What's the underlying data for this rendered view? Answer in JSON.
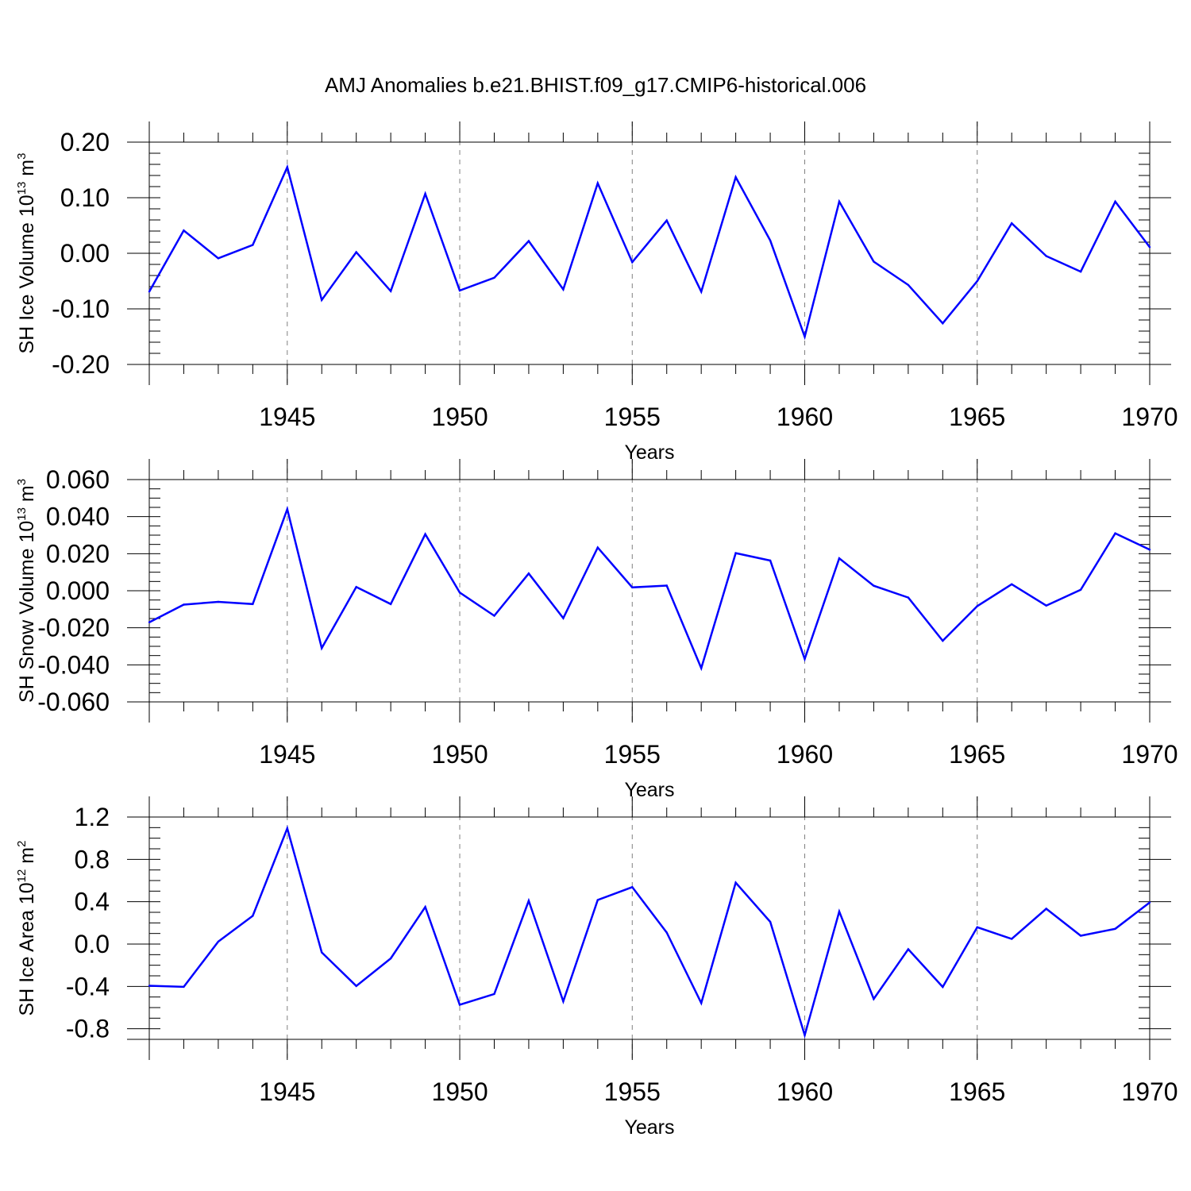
{
  "title": "AMJ Anomalies b.e21.BHIST.f09_g17.CMIP6-historical.006",
  "colors": {
    "line": "#0000ff",
    "axis": "#000000",
    "grid": "#808080"
  },
  "chart_data": [
    {
      "type": "line",
      "ylabel": {
        "text": "SH Ice Volume 10",
        "sup": "13",
        "unit": " m",
        "unit_sup": "3"
      },
      "xlabel": "Years",
      "xlim": [
        1941,
        1970
      ],
      "ylim": [
        -0.2,
        0.2
      ],
      "xticks": [
        1945,
        1950,
        1955,
        1960,
        1965,
        1970
      ],
      "yticks": [
        0.2,
        0.1,
        0.0,
        -0.1,
        -0.2
      ],
      "ytick_labels": [
        "0.20",
        "0.10",
        "0.00",
        "-0.10",
        "-0.20"
      ],
      "grid_x": [
        1945,
        1950,
        1955,
        1960,
        1965
      ],
      "x": [
        1941,
        1942,
        1943,
        1944,
        1945,
        1946,
        1947,
        1948,
        1949,
        1950,
        1951,
        1952,
        1953,
        1954,
        1955,
        1956,
        1957,
        1958,
        1959,
        1960,
        1961,
        1962,
        1963,
        1964,
        1965,
        1966,
        1967,
        1968,
        1969,
        1970
      ],
      "values": [
        -0.069,
        0.041,
        -0.009,
        0.015,
        0.155,
        -0.084,
        0.002,
        -0.068,
        0.107,
        -0.067,
        -0.044,
        0.022,
        -0.065,
        0.126,
        -0.016,
        0.059,
        -0.069,
        0.137,
        0.023,
        -0.15,
        0.093,
        -0.015,
        -0.057,
        -0.126,
        -0.05,
        0.054,
        -0.005,
        -0.033,
        0.093,
        0.011
      ]
    },
    {
      "type": "line",
      "ylabel": {
        "text": "SH Snow Volume 10",
        "sup": "13",
        "unit": " m",
        "unit_sup": "3"
      },
      "xlabel": "Years",
      "xlim": [
        1941,
        1970
      ],
      "ylim": [
        -0.06,
        0.06
      ],
      "xticks": [
        1945,
        1950,
        1955,
        1960,
        1965,
        1970
      ],
      "yticks": [
        0.06,
        0.04,
        0.02,
        0.0,
        -0.02,
        -0.04,
        -0.06
      ],
      "ytick_labels": [
        "0.060",
        "0.040",
        "0.020",
        "0.000",
        "-0.020",
        "-0.040",
        "-0.060"
      ],
      "grid_x": [
        1945,
        1950,
        1955,
        1960,
        1965
      ],
      "x": [
        1941,
        1942,
        1943,
        1944,
        1945,
        1946,
        1947,
        1948,
        1949,
        1950,
        1951,
        1952,
        1953,
        1954,
        1955,
        1956,
        1957,
        1958,
        1959,
        1960,
        1961,
        1962,
        1963,
        1964,
        1965,
        1966,
        1967,
        1968,
        1969,
        1970
      ],
      "values": [
        -0.017,
        -0.0075,
        -0.006,
        -0.0072,
        0.044,
        -0.031,
        0.002,
        -0.0072,
        0.0305,
        -0.001,
        -0.0135,
        0.0093,
        -0.0148,
        0.0233,
        0.0018,
        0.0028,
        -0.0418,
        0.0203,
        0.0163,
        -0.0368,
        0.0175,
        0.0027,
        -0.0037,
        -0.027,
        -0.0083,
        0.0035,
        -0.008,
        0.0005,
        0.031,
        0.0222
      ]
    },
    {
      "type": "line",
      "ylabel": {
        "text": "SH Ice Area 10",
        "sup": "12",
        "unit": " m",
        "unit_sup": "2"
      },
      "xlabel": "Years",
      "xlim": [
        1941,
        1970
      ],
      "ylim": [
        -0.9,
        1.2
      ],
      "xticks": [
        1945,
        1950,
        1955,
        1960,
        1965,
        1970
      ],
      "yticks": [
        1.2,
        0.8,
        0.4,
        0.0,
        -0.4,
        -0.8
      ],
      "ytick_labels": [
        "1.2",
        "0.8",
        "0.4",
        "0.0",
        "-0.4",
        "-0.8"
      ],
      "grid_x": [
        1945,
        1950,
        1955,
        1960,
        1965
      ],
      "x": [
        1941,
        1942,
        1943,
        1944,
        1945,
        1946,
        1947,
        1948,
        1949,
        1950,
        1951,
        1952,
        1953,
        1954,
        1955,
        1956,
        1957,
        1958,
        1959,
        1960,
        1961,
        1962,
        1963,
        1964,
        1965,
        1966,
        1967,
        1968,
        1969,
        1970
      ],
      "values": [
        -0.394,
        -0.404,
        0.023,
        0.266,
        1.093,
        -0.079,
        -0.396,
        -0.136,
        0.35,
        -0.574,
        -0.472,
        0.409,
        -0.541,
        0.416,
        0.538,
        0.109,
        -0.557,
        0.58,
        0.21,
        -0.86,
        0.307,
        -0.518,
        -0.049,
        -0.405,
        0.159,
        0.049,
        0.334,
        0.079,
        0.144,
        0.393
      ]
    }
  ]
}
